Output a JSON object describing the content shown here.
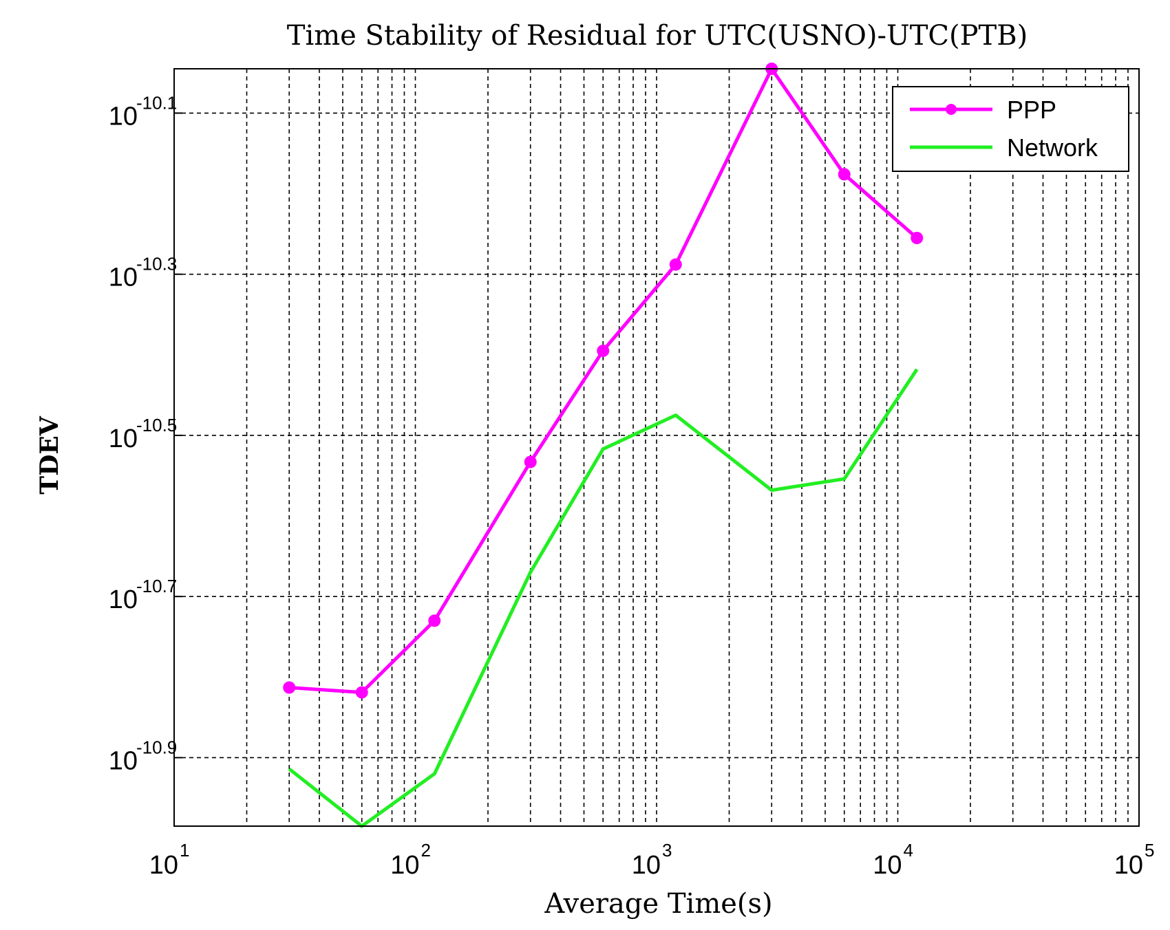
{
  "chart_data": {
    "type": "line",
    "title": "Time Stability of Residual for UTC(USNO)-UTC(PTB)",
    "xlabel": "Average Time(s)",
    "ylabel": "TDEV",
    "x_scale": "log",
    "y_scale": "log",
    "xlim_log10": [
      1,
      5
    ],
    "ylim_log10": [
      -10.985,
      -10.045
    ],
    "x_ticks": [
      {
        "base": "10",
        "exp": "1",
        "log": 1
      },
      {
        "base": "10",
        "exp": "2",
        "log": 2
      },
      {
        "base": "10",
        "exp": "3",
        "log": 3
      },
      {
        "base": "10",
        "exp": "4",
        "log": 4
      },
      {
        "base": "10",
        "exp": "5",
        "log": 5
      }
    ],
    "y_ticks": [
      {
        "base": "10",
        "exp": "-10.1",
        "log": -10.1
      },
      {
        "base": "10",
        "exp": "-10.3",
        "log": -10.3
      },
      {
        "base": "10",
        "exp": "-10.5",
        "log": -10.5
      },
      {
        "base": "10",
        "exp": "-10.7",
        "log": -10.7
      },
      {
        "base": "10",
        "exp": "-10.9",
        "log": -10.9
      }
    ],
    "grid": true,
    "legend_position": "top-right",
    "series": [
      {
        "name": "PPP",
        "color": "#ff00ff",
        "marker": true,
        "x": [
          30,
          60,
          120,
          300,
          600,
          1200,
          3000,
          6000,
          12000
        ],
        "log10_y": [
          -10.813,
          -10.819,
          -10.73,
          -10.533,
          -10.395,
          -10.288,
          -10.045,
          -10.176,
          -10.255
        ]
      },
      {
        "name": "Network",
        "color": "#22ee22",
        "marker": false,
        "x": [
          30,
          60,
          120,
          300,
          600,
          1200,
          3000,
          6000,
          12000
        ],
        "log10_y": [
          -10.914,
          -10.985,
          -10.92,
          -10.67,
          -10.517,
          -10.475,
          -10.568,
          -10.554,
          -10.418
        ]
      }
    ]
  }
}
